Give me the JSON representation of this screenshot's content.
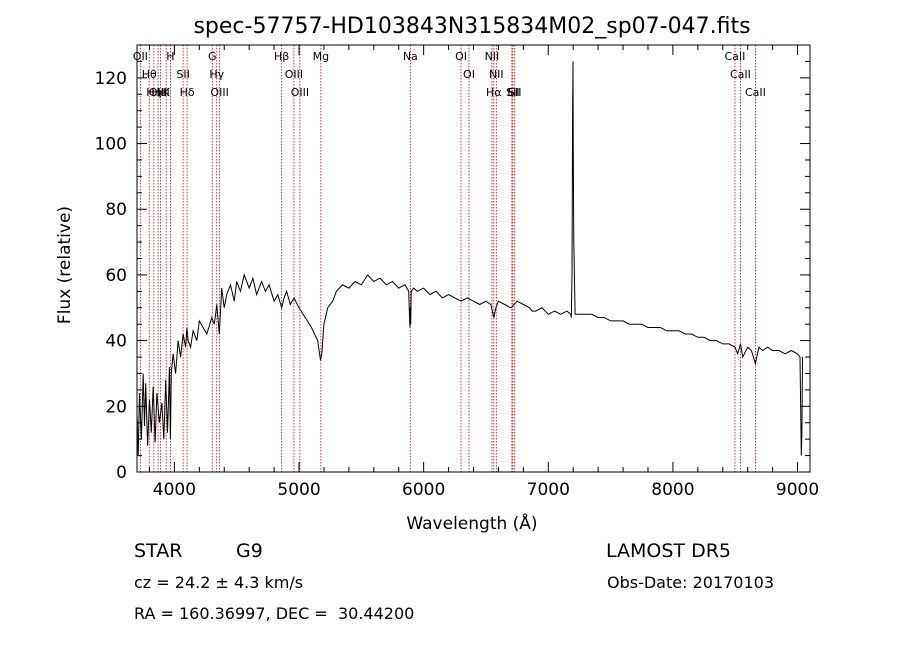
{
  "chart_data": {
    "type": "line",
    "title": "spec-57757-HD103843N315834M02_sp07-047.fits",
    "xlabel": "Wavelength (Å)",
    "ylabel": "Flux (relative)",
    "xlim": [
      3700,
      9100
    ],
    "ylim": [
      0,
      130
    ],
    "xticks": [
      4000,
      5000,
      6000,
      7000,
      8000,
      9000
    ],
    "yticks": [
      0,
      20,
      40,
      60,
      80,
      100,
      120
    ],
    "grid": false,
    "series": [
      {
        "color": "#000000",
        "x": [
          3700,
          3710,
          3720,
          3735,
          3750,
          3760,
          3770,
          3785,
          3800,
          3815,
          3830,
          3845,
          3860,
          3880,
          3900,
          3915,
          3930,
          3945,
          3955,
          3960,
          3968,
          3975,
          3990,
          4010,
          4030,
          4050,
          4070,
          4090,
          4100,
          4110,
          4130,
          4150,
          4180,
          4200,
          4230,
          4260,
          4300,
          4320,
          4340,
          4360,
          4380,
          4400,
          4420,
          4450,
          4480,
          4500,
          4530,
          4560,
          4600,
          4630,
          4660,
          4700,
          4730,
          4760,
          4800,
          4830,
          4861,
          4880,
          4900,
          4930,
          4960,
          5000,
          5050,
          5100,
          5150,
          5172,
          5183,
          5200,
          5230,
          5270,
          5300,
          5350,
          5400,
          5450,
          5500,
          5550,
          5600,
          5650,
          5700,
          5750,
          5800,
          5850,
          5880,
          5890,
          5893,
          5896,
          5900,
          5920,
          5950,
          6000,
          6050,
          6100,
          6150,
          6200,
          6250,
          6300,
          6350,
          6400,
          6450,
          6500,
          6540,
          6563,
          6580,
          6600,
          6650,
          6700,
          6750,
          6800,
          6850,
          6870,
          6900,
          6950,
          7000,
          7050,
          7100,
          7150,
          7180,
          7185,
          7190,
          7195,
          7198,
          7200,
          7205,
          7215,
          7250,
          7300,
          7350,
          7400,
          7450,
          7500,
          7550,
          7600,
          7650,
          7700,
          7750,
          7800,
          7850,
          7900,
          7950,
          8000,
          8050,
          8100,
          8150,
          8200,
          8250,
          8300,
          8350,
          8400,
          8450,
          8498,
          8520,
          8542,
          8560,
          8600,
          8630,
          8662,
          8690,
          8720,
          8760,
          8800,
          8850,
          8900,
          8950,
          9000,
          9020,
          9030,
          9035,
          9040
        ],
        "values": [
          18,
          5,
          24,
          10,
          30,
          14,
          27,
          8,
          22,
          12,
          26,
          9,
          24,
          15,
          21,
          10,
          28,
          12,
          25,
          32,
          10,
          30,
          36,
          30,
          40,
          35,
          42,
          38,
          44,
          40,
          38,
          43,
          40,
          46,
          44,
          42,
          47,
          45,
          51,
          42,
          56,
          50,
          54,
          57,
          52,
          58,
          55,
          60,
          56,
          59,
          54,
          58,
          55,
          57,
          52,
          54,
          50,
          53,
          55,
          51,
          53,
          50,
          47,
          44,
          40,
          34,
          36,
          45,
          50,
          52,
          55,
          57,
          56,
          58,
          57,
          60,
          58,
          59,
          57,
          58,
          56,
          57,
          55,
          44,
          50,
          45,
          55,
          56,
          55,
          56,
          54,
          55,
          53,
          54,
          53,
          52,
          53,
          52,
          51,
          52,
          51,
          47,
          50,
          52,
          51,
          50,
          52,
          51,
          50,
          49,
          49,
          50,
          48,
          49,
          48,
          49,
          48,
          47,
          60,
          110,
          125,
          100,
          70,
          48,
          48,
          48,
          48,
          47,
          47,
          46,
          46,
          46,
          45,
          45,
          45,
          44,
          44,
          44,
          43,
          43,
          43,
          42,
          42,
          41,
          41,
          40,
          40,
          39,
          39,
          38,
          36,
          39,
          35,
          38,
          37,
          33,
          38,
          37,
          38,
          37,
          37,
          36,
          37,
          36,
          35,
          5,
          12,
          35
        ]
      }
    ],
    "lines": [
      {
        "label": "Hθ",
        "x": 3798
      },
      {
        "label": "OII",
        "x": 3727
      },
      {
        "label": "OIII",
        "x": 3869
      },
      {
        "label": "HeI",
        "x": 3889
      },
      {
        "label": "Hη",
        "x": 3835
      },
      {
        "label": "K",
        "x": 3934
      },
      {
        "label": "H",
        "x": 3968
      },
      {
        "label": "SII",
        "x": 4070
      },
      {
        "label": "Hδ",
        "x": 4102
      },
      {
        "label": "OIII",
        "x": 4363
      },
      {
        "label": "Hγ",
        "x": 4340
      },
      {
        "label": "G",
        "x": 4304
      },
      {
        "label": "Hβ",
        "x": 4861
      },
      {
        "label": "OIII",
        "x": 4959
      },
      {
        "label": "OIII",
        "x": 5007
      },
      {
        "label": "Mg",
        "x": 5175
      },
      {
        "label": "Na",
        "x": 5893
      },
      {
        "label": "OI",
        "x": 6300
      },
      {
        "label": "OI",
        "x": 6364
      },
      {
        "label": "NII",
        "x": 6548
      },
      {
        "label": "Hα",
        "x": 6563
      },
      {
        "label": "NII",
        "x": 6583
      },
      {
        "label": "Li",
        "x": 6708
      },
      {
        "label": "SII",
        "x": 6716
      },
      {
        "label": "SII",
        "x": 6731
      },
      {
        "label": "CaII",
        "x": 8498
      },
      {
        "label": "CaII",
        "x": 8542
      },
      {
        "label": "CaII",
        "x": 8662
      }
    ]
  },
  "footer": {
    "object_type": "STAR",
    "subclass": "G9",
    "survey": "LAMOST DR5",
    "cz": "cz = 24.2 ± 4.3 km/s",
    "obs_date": "Obs-Date: 20170103",
    "radec": "RA = 160.36997, DEC =  30.44200"
  }
}
